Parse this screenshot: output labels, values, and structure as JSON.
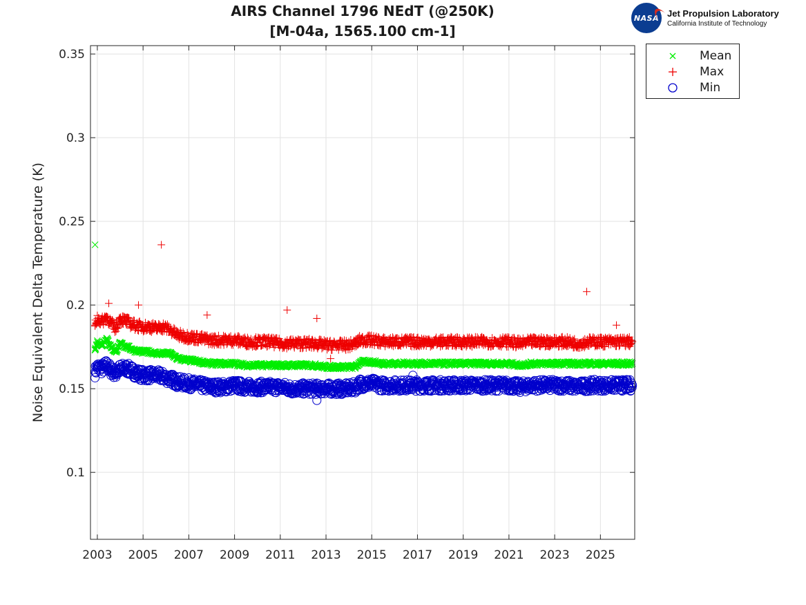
{
  "title_line1": "AIRS Channel 1796 NEdT (@250K)",
  "title_line2": "[M-04a, 1565.100 cm-1]",
  "logo": {
    "nasa_text": "NASA",
    "jpl_title": "Jet Propulsion Laboratory",
    "jpl_subtitle": "California Institute of Technology"
  },
  "legend": [
    {
      "label": "Mean",
      "marker": "x",
      "color": "#00ee00"
    },
    {
      "label": "Max",
      "marker": "+",
      "color": "#ee0000"
    },
    {
      "label": "Min",
      "marker": "o",
      "color": "#0000cc"
    }
  ],
  "chart_data": {
    "type": "scatter",
    "title": "AIRS Channel 1796 NEdT (@250K) [M-04a, 1565.100 cm-1]",
    "xlabel": "",
    "ylabel": "Noise Equivalent Delta Temperature (K)",
    "xlim": [
      2002.7,
      2026.5
    ],
    "ylim": [
      0.06,
      0.355
    ],
    "yticks": [
      0.1,
      0.15,
      0.2,
      0.25,
      0.3,
      0.35
    ],
    "yticklabels": [
      "0.1",
      "0.15",
      "0.2",
      "0.25",
      "0.3",
      "0.35"
    ],
    "xticks": [
      2003,
      2005,
      2007,
      2009,
      2011,
      2013,
      2015,
      2017,
      2019,
      2021,
      2023,
      2025
    ],
    "xticklabels": [
      "2003",
      "2005",
      "2007",
      "2009",
      "2011",
      "2013",
      "2015",
      "2017",
      "2019",
      "2021",
      "2023",
      "2025"
    ],
    "grid": true,
    "legend_position": "outside-top-right",
    "series": [
      {
        "name": "Mean",
        "marker": "x",
        "color": "#00ee00",
        "x": [
          2002.9,
          2003.0,
          2003.2,
          2003.4,
          2003.6,
          2003.8,
          2004.0,
          2004.3,
          2004.6,
          2005.0,
          2005.3,
          2005.6,
          2005.9,
          2006.2,
          2006.5,
          2007.0,
          2007.5,
          2008.0,
          2008.5,
          2009.0,
          2009.5,
          2010.0,
          2010.5,
          2011.0,
          2011.5,
          2012.0,
          2012.5,
          2013.0,
          2013.5,
          2014.0,
          2014.3,
          2014.5,
          2015.0,
          2015.5,
          2016.0,
          2016.5,
          2017.0,
          2017.5,
          2018.0,
          2018.5,
          2019.0,
          2019.5,
          2020.0,
          2020.5,
          2021.0,
          2021.5,
          2022.0,
          2022.5,
          2023.0,
          2023.5,
          2024.0,
          2024.5,
          2025.0,
          2025.5,
          2026.0,
          2026.4,
          2002.9
        ],
        "y": [
          0.173,
          0.178,
          0.176,
          0.18,
          0.175,
          0.172,
          0.177,
          0.175,
          0.173,
          0.172,
          0.172,
          0.171,
          0.171,
          0.171,
          0.168,
          0.167,
          0.166,
          0.165,
          0.165,
          0.165,
          0.164,
          0.164,
          0.164,
          0.164,
          0.164,
          0.164,
          0.164,
          0.163,
          0.163,
          0.163,
          0.163,
          0.166,
          0.166,
          0.165,
          0.165,
          0.165,
          0.165,
          0.165,
          0.165,
          0.165,
          0.165,
          0.165,
          0.165,
          0.165,
          0.165,
          0.164,
          0.165,
          0.165,
          0.165,
          0.165,
          0.165,
          0.165,
          0.165,
          0.165,
          0.165,
          0.165,
          0.236
        ]
      },
      {
        "name": "Max",
        "marker": "+",
        "color": "#ee0000",
        "x": [
          2002.9,
          2003.0,
          2003.2,
          2003.4,
          2003.6,
          2003.8,
          2004.0,
          2004.3,
          2004.6,
          2005.0,
          2005.3,
          2005.6,
          2005.9,
          2006.2,
          2006.5,
          2007.0,
          2007.5,
          2008.0,
          2008.5,
          2009.0,
          2009.5,
          2010.0,
          2010.5,
          2011.0,
          2011.5,
          2012.0,
          2012.5,
          2013.0,
          2013.5,
          2014.0,
          2014.3,
          2014.5,
          2015.0,
          2015.5,
          2016.0,
          2016.5,
          2017.0,
          2017.5,
          2018.0,
          2018.5,
          2019.0,
          2019.5,
          2020.0,
          2020.5,
          2021.0,
          2021.5,
          2022.0,
          2022.5,
          2023.0,
          2023.5,
          2024.0,
          2024.5,
          2025.0,
          2025.5,
          2026.0,
          2026.4,
          2005.8,
          2024.4,
          2011.3,
          2007.8,
          2012.6,
          2003.5,
          2004.8,
          2013.2,
          2025.7
        ],
        "y": [
          0.188,
          0.192,
          0.19,
          0.193,
          0.189,
          0.186,
          0.192,
          0.19,
          0.188,
          0.187,
          0.187,
          0.186,
          0.187,
          0.185,
          0.182,
          0.181,
          0.18,
          0.179,
          0.179,
          0.179,
          0.178,
          0.178,
          0.178,
          0.177,
          0.177,
          0.177,
          0.177,
          0.176,
          0.176,
          0.176,
          0.177,
          0.179,
          0.179,
          0.178,
          0.178,
          0.178,
          0.178,
          0.178,
          0.178,
          0.178,
          0.178,
          0.178,
          0.178,
          0.178,
          0.178,
          0.177,
          0.178,
          0.178,
          0.178,
          0.178,
          0.177,
          0.178,
          0.178,
          0.178,
          0.178,
          0.178,
          0.236,
          0.208,
          0.197,
          0.194,
          0.192,
          0.201,
          0.2,
          0.168,
          0.188
        ]
      },
      {
        "name": "Min",
        "marker": "o",
        "color": "#0000cc",
        "x": [
          2002.9,
          2003.0,
          2003.2,
          2003.4,
          2003.6,
          2003.8,
          2004.0,
          2004.3,
          2004.6,
          2005.0,
          2005.3,
          2005.6,
          2005.9,
          2006.2,
          2006.5,
          2007.0,
          2007.5,
          2008.0,
          2008.5,
          2009.0,
          2009.5,
          2010.0,
          2010.5,
          2011.0,
          2011.5,
          2012.0,
          2012.5,
          2013.0,
          2013.5,
          2014.0,
          2014.3,
          2014.5,
          2015.0,
          2015.5,
          2016.0,
          2016.5,
          2017.0,
          2017.5,
          2018.0,
          2018.5,
          2019.0,
          2019.5,
          2020.0,
          2020.5,
          2021.0,
          2021.5,
          2022.0,
          2022.5,
          2023.0,
          2023.5,
          2024.0,
          2024.5,
          2025.0,
          2025.5,
          2026.0,
          2026.4,
          2016.8,
          2012.6
        ],
        "y": [
          0.16,
          0.163,
          0.162,
          0.164,
          0.161,
          0.159,
          0.162,
          0.162,
          0.16,
          0.158,
          0.158,
          0.158,
          0.157,
          0.156,
          0.154,
          0.153,
          0.152,
          0.151,
          0.151,
          0.152,
          0.151,
          0.151,
          0.151,
          0.151,
          0.15,
          0.15,
          0.15,
          0.15,
          0.15,
          0.15,
          0.151,
          0.153,
          0.153,
          0.152,
          0.152,
          0.152,
          0.152,
          0.152,
          0.152,
          0.152,
          0.152,
          0.152,
          0.152,
          0.152,
          0.152,
          0.151,
          0.152,
          0.152,
          0.152,
          0.152,
          0.151,
          0.152,
          0.152,
          0.152,
          0.152,
          0.152,
          0.158,
          0.143
        ]
      }
    ]
  }
}
